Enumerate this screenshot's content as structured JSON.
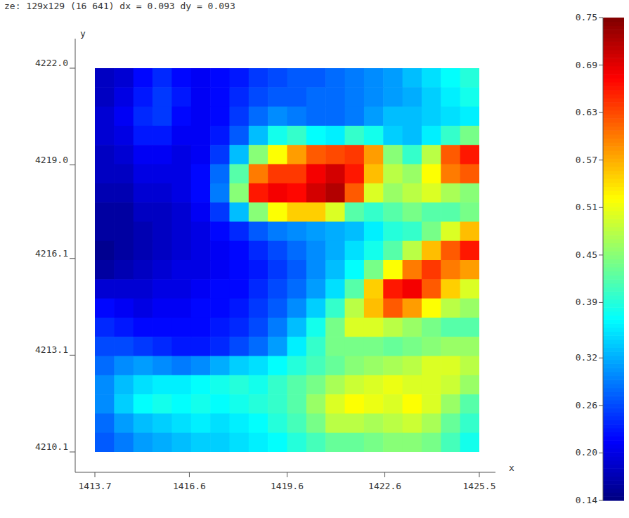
{
  "chart_data": {
    "type": "heatmap",
    "title": "ze: 129x129 (16 641) dx = 0.093 dy = 0.093",
    "x_label": "x",
    "y_label": "y",
    "xlim": [
      1413.7,
      1425.5
    ],
    "ylim": [
      4210.1,
      4222.0
    ],
    "xticks": [
      1413.7,
      1416.6,
      1419.6,
      1422.6,
      1425.5
    ],
    "yticks": [
      4210.1,
      4213.1,
      4216.1,
      {
        "value": 4219,
        "label": "4219.0"
      },
      {
        "value": 4222,
        "label": "4222.0"
      }
    ],
    "x": [
      1413.995,
      1414.585,
      1415.175,
      1415.765,
      1416.355,
      1416.945,
      1417.535,
      1418.125,
      1418.715,
      1419.305,
      1419.895,
      1420.485,
      1421.075,
      1421.665,
      1422.255,
      1422.845,
      1423.435,
      1424.025,
      1424.615,
      1425.205
    ],
    "y": [
      4221.7025,
      4221.1075,
      4220.5125,
      4219.9175,
      4219.3225,
      4218.7275,
      4218.1325,
      4217.5375,
      4216.9425,
      4216.3475,
      4215.7525,
      4215.1575,
      4214.5625,
      4213.9675,
      4213.3725,
      4212.7775,
      4212.1825,
      4211.5875,
      4210.9925,
      4210.3975
    ],
    "cells": [
      [
        0.18,
        0.19,
        0.22,
        0.24,
        0.22,
        0.21,
        0.22,
        0.23,
        0.25,
        0.26,
        0.27,
        0.27,
        0.28,
        0.29,
        0.3,
        0.31,
        0.33,
        0.35,
        0.37,
        0.39
      ],
      [
        0.18,
        0.2,
        0.23,
        0.25,
        0.23,
        0.21,
        0.22,
        0.24,
        0.26,
        0.27,
        0.27,
        0.28,
        0.28,
        0.29,
        0.3,
        0.31,
        0.32,
        0.34,
        0.36,
        0.38
      ],
      [
        0.19,
        0.21,
        0.24,
        0.25,
        0.22,
        0.21,
        0.22,
        0.25,
        0.28,
        0.3,
        0.29,
        0.28,
        0.28,
        0.29,
        0.31,
        0.33,
        0.33,
        0.34,
        0.35,
        0.36
      ],
      [
        0.19,
        0.2,
        0.23,
        0.23,
        0.21,
        0.21,
        0.23,
        0.27,
        0.33,
        0.38,
        0.4,
        0.37,
        0.36,
        0.4,
        0.38,
        0.34,
        0.33,
        0.36,
        0.4,
        0.44
      ],
      [
        0.18,
        0.19,
        0.21,
        0.21,
        0.2,
        0.21,
        0.25,
        0.33,
        0.45,
        0.52,
        0.58,
        0.62,
        0.63,
        0.64,
        0.58,
        0.45,
        0.4,
        0.48,
        0.62,
        0.66
      ],
      [
        0.18,
        0.18,
        0.2,
        0.2,
        0.2,
        0.22,
        0.28,
        0.42,
        0.6,
        0.64,
        0.64,
        0.68,
        0.7,
        0.66,
        0.56,
        0.48,
        0.46,
        0.52,
        0.6,
        0.62
      ],
      [
        0.17,
        0.17,
        0.19,
        0.19,
        0.2,
        0.22,
        0.29,
        0.45,
        0.66,
        0.68,
        0.67,
        0.7,
        0.72,
        0.62,
        0.5,
        0.46,
        0.48,
        0.5,
        0.47,
        0.45
      ],
      [
        0.16,
        0.16,
        0.18,
        0.18,
        0.19,
        0.21,
        0.25,
        0.33,
        0.45,
        0.52,
        0.55,
        0.55,
        0.5,
        0.42,
        0.4,
        0.42,
        0.44,
        0.42,
        0.42,
        0.44
      ],
      [
        0.16,
        0.16,
        0.17,
        0.18,
        0.19,
        0.2,
        0.22,
        0.24,
        0.27,
        0.29,
        0.3,
        0.31,
        0.32,
        0.33,
        0.36,
        0.39,
        0.4,
        0.44,
        0.5,
        0.56
      ],
      [
        0.15,
        0.16,
        0.17,
        0.18,
        0.19,
        0.2,
        0.21,
        0.22,
        0.24,
        0.26,
        0.28,
        0.3,
        0.32,
        0.35,
        0.38,
        0.42,
        0.48,
        0.56,
        0.62,
        0.66
      ],
      [
        0.16,
        0.17,
        0.18,
        0.19,
        0.2,
        0.2,
        0.21,
        0.22,
        0.23,
        0.25,
        0.27,
        0.3,
        0.33,
        0.37,
        0.44,
        0.52,
        0.6,
        0.64,
        0.6,
        0.58
      ],
      [
        0.19,
        0.19,
        0.19,
        0.2,
        0.2,
        0.21,
        0.22,
        0.22,
        0.24,
        0.26,
        0.28,
        0.31,
        0.35,
        0.42,
        0.55,
        0.66,
        0.68,
        0.62,
        0.55,
        0.5
      ],
      [
        0.22,
        0.21,
        0.2,
        0.21,
        0.21,
        0.22,
        0.22,
        0.23,
        0.25,
        0.27,
        0.3,
        0.34,
        0.4,
        0.48,
        0.56,
        0.62,
        0.58,
        0.52,
        0.48,
        0.46
      ],
      [
        0.24,
        0.23,
        0.22,
        0.22,
        0.22,
        0.22,
        0.23,
        0.24,
        0.26,
        0.29,
        0.33,
        0.38,
        0.44,
        0.5,
        0.5,
        0.48,
        0.46,
        0.44,
        0.42,
        0.42
      ],
      [
        0.26,
        0.26,
        0.25,
        0.24,
        0.23,
        0.23,
        0.24,
        0.26,
        0.28,
        0.31,
        0.36,
        0.4,
        0.44,
        0.44,
        0.44,
        0.43,
        0.44,
        0.45,
        0.46,
        0.46
      ],
      [
        0.28,
        0.3,
        0.31,
        0.3,
        0.29,
        0.3,
        0.32,
        0.34,
        0.35,
        0.37,
        0.39,
        0.41,
        0.43,
        0.45,
        0.46,
        0.47,
        0.48,
        0.5,
        0.5,
        0.48
      ],
      [
        0.3,
        0.33,
        0.35,
        0.36,
        0.36,
        0.37,
        0.38,
        0.39,
        0.38,
        0.4,
        0.42,
        0.44,
        0.47,
        0.49,
        0.5,
        0.51,
        0.5,
        0.5,
        0.49,
        0.46
      ],
      [
        0.3,
        0.34,
        0.37,
        0.38,
        0.37,
        0.38,
        0.37,
        0.38,
        0.39,
        0.4,
        0.42,
        0.46,
        0.5,
        0.52,
        0.51,
        0.5,
        0.52,
        0.5,
        0.46,
        0.42
      ],
      [
        0.28,
        0.31,
        0.33,
        0.34,
        0.35,
        0.36,
        0.35,
        0.36,
        0.37,
        0.39,
        0.41,
        0.44,
        0.48,
        0.48,
        0.47,
        0.48,
        0.49,
        0.47,
        0.43,
        0.4
      ],
      [
        0.27,
        0.29,
        0.31,
        0.32,
        0.33,
        0.34,
        0.34,
        0.35,
        0.36,
        0.37,
        0.39,
        0.41,
        0.43,
        0.43,
        0.44,
        0.45,
        0.45,
        0.44,
        0.41,
        0.38
      ]
    ],
    "colorbar_range": [
      0.14,
      0.75
    ],
    "colorbar_ticks": [
      0.14,
      {
        "value": 0.2,
        "label": "0.20"
      },
      0.26,
      0.32,
      0.39,
      0.45,
      0.51,
      0.57,
      0.63,
      0.69,
      0.75
    ]
  }
}
